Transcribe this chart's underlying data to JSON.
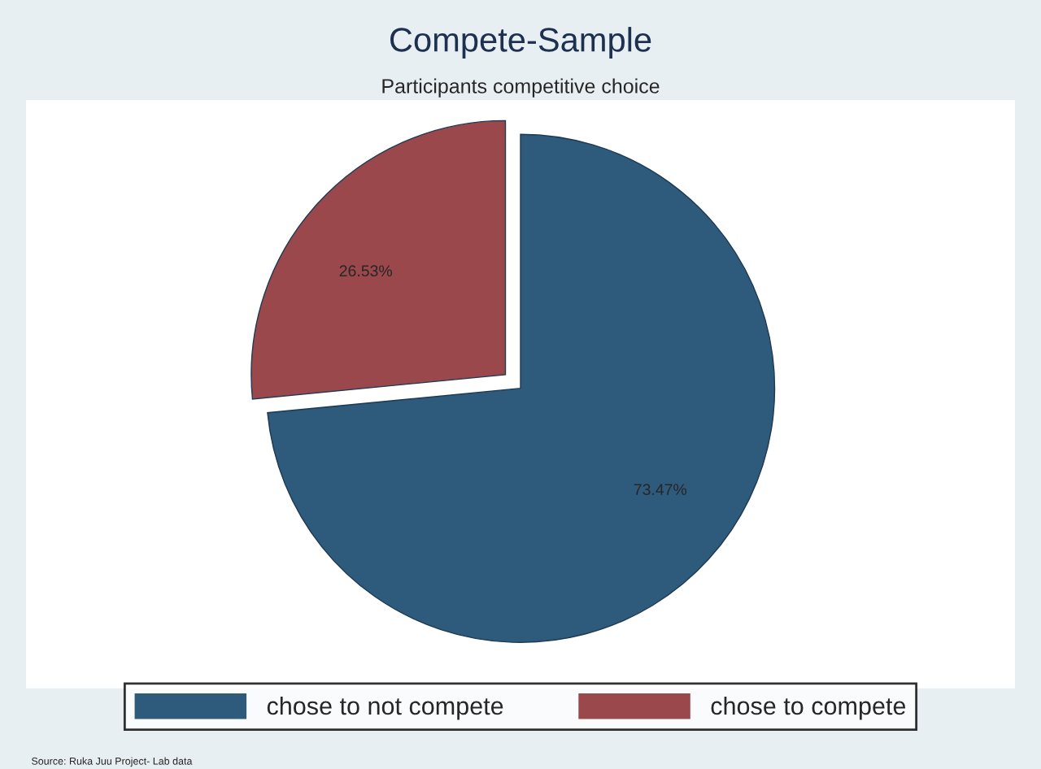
{
  "chart_data": {
    "type": "pie",
    "title": "Compete-Sample",
    "subtitle": "Participants competitive choice",
    "categories": [
      "chose to not compete",
      "chose to compete"
    ],
    "values": [
      73.47,
      26.53
    ],
    "colors": [
      "#2e5a7c",
      "#9b484d"
    ],
    "value_labels": [
      "73.47%",
      "26.53%"
    ],
    "legend": "bottom",
    "annotations": [
      "Source: Ruka Juu Project- Lab data"
    ]
  }
}
